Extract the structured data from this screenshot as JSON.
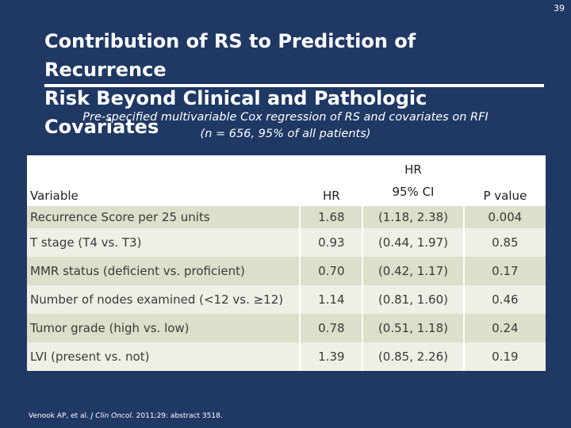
{
  "slide": {
    "number": "39"
  },
  "title": {
    "line1": "Contribution of RS to Prediction of Recurrence",
    "line2": "Risk Beyond Clinical and Pathologic Covariates"
  },
  "subtitle": {
    "line1": "Pre-specified multivariable Cox regression of RS and covariates on RFI",
    "line2": "(n = 656, 95% of all patients)"
  },
  "table": {
    "headers": {
      "variable": "Variable",
      "hr": "HR",
      "ci_line1": "HR",
      "ci_line2": "95% CI",
      "p": "P value"
    },
    "rows": [
      {
        "variable": "Recurrence Score per 25 units",
        "hr": "1.68",
        "ci": "(1.18, 2.38)",
        "p": "0.004"
      },
      {
        "variable": "T stage (T4 vs. T3)",
        "hr": "0.93",
        "ci": "(0.44, 1.97)",
        "p": "0.85"
      },
      {
        "variable": "MMR status (deficient vs. proficient)",
        "hr": "0.70",
        "ci": "(0.42, 1.17)",
        "p": "0.17"
      },
      {
        "variable": "Number of nodes examined (<12 vs. ≥12)",
        "hr": "1.14",
        "ci": "(0.81, 1.60)",
        "p": "0.46"
      },
      {
        "variable": "Tumor grade (high vs. low)",
        "hr": "0.78",
        "ci": "(0.51, 1.18)",
        "p": "0.24"
      },
      {
        "variable": "LVI (present vs. not)",
        "hr": "1.39",
        "ci": "(0.85, 2.26)",
        "p": "0.19"
      }
    ]
  },
  "footnote": {
    "authors": "Venook AP, et al.",
    "journal": "J Clin Oncol.",
    "rest": "2011;29: abstract 3518."
  },
  "colors": {
    "background": "#1f3864",
    "row_dark": "#dcdfc9",
    "row_light": "#eef0e6",
    "header": "#ffffff"
  }
}
